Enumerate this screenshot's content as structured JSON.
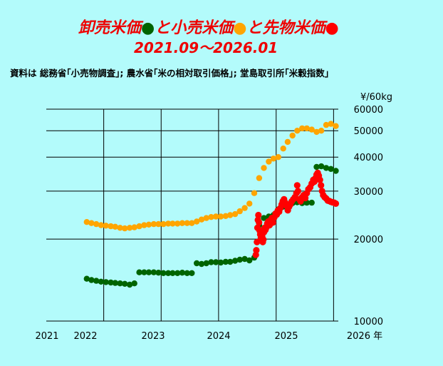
{
  "title": {
    "line1": {
      "part1": "卸売米価",
      "part2": "と小売米価",
      "part3": "と先物米価",
      "part4": ""
    },
    "line2": "2021.09～2026.01"
  },
  "source": "資料は 総務省｢小売物調査｣; 農水省｢米の相対取引価格｣; 堂島取引所｢米穀指数｣",
  "colors": {
    "title": "#ee0000",
    "wholesale": "#006400",
    "retail": "#ffa500",
    "futures": "#ff0000",
    "background": "#b3fbfb"
  },
  "chart_data": {
    "type": "scatter",
    "y_scale": "log",
    "ylim": [
      10000,
      60000
    ],
    "xlim": [
      "2021-01-01",
      "2026-01-31"
    ],
    "y_unit": "¥/60kg",
    "y_ticks": [
      "60000",
      "50000",
      "40000",
      "30000",
      "20000",
      "10000"
    ],
    "x_ticks": [
      "2021",
      "2022",
      "2023",
      "2024",
      "2025",
      "2026 年"
    ],
    "grid": true,
    "series": [
      {
        "name": "卸売米価",
        "color": "#006400",
        "points": [
          [
            "2021-09",
            14300
          ],
          [
            "2021-10",
            14150
          ],
          [
            "2021-11",
            14050
          ],
          [
            "2021-12",
            13950
          ],
          [
            "2022-01",
            13900
          ],
          [
            "2022-02",
            13850
          ],
          [
            "2022-03",
            13800
          ],
          [
            "2022-04",
            13750
          ],
          [
            "2022-05",
            13700
          ],
          [
            "2022-06",
            13600
          ],
          [
            "2022-07",
            13750
          ],
          [
            "2022-08",
            15100
          ],
          [
            "2022-09",
            15100
          ],
          [
            "2022-10",
            15100
          ],
          [
            "2022-11",
            15100
          ],
          [
            "2022-12",
            15050
          ],
          [
            "2023-01",
            15000
          ],
          [
            "2023-02",
            15000
          ],
          [
            "2023-03",
            15000
          ],
          [
            "2023-04",
            15000
          ],
          [
            "2023-05",
            15050
          ],
          [
            "2023-06",
            15000
          ],
          [
            "2023-07",
            15000
          ],
          [
            "2023-08",
            16300
          ],
          [
            "2023-09",
            16200
          ],
          [
            "2023-10",
            16300
          ],
          [
            "2023-11",
            16450
          ],
          [
            "2023-12",
            16450
          ],
          [
            "2024-01",
            16400
          ],
          [
            "2024-02",
            16500
          ],
          [
            "2024-03",
            16500
          ],
          [
            "2024-04",
            16650
          ],
          [
            "2024-05",
            16800
          ],
          [
            "2024-06",
            16900
          ],
          [
            "2024-07",
            16700
          ],
          [
            "2024-08",
            17100
          ],
          [
            "2024-09",
            22500
          ],
          [
            "2024-10",
            23900
          ],
          [
            "2024-11",
            24200
          ],
          [
            "2024-12",
            24500
          ],
          [
            "2025-01",
            25700
          ],
          [
            "2025-02",
            26300
          ],
          [
            "2025-03",
            26200
          ],
          [
            "2025-04",
            27100
          ],
          [
            "2025-05",
            27300
          ],
          [
            "2025-06",
            27100
          ],
          [
            "2025-07",
            27200
          ],
          [
            "2025-08",
            27200
          ],
          [
            "2025-09",
            36800
          ],
          [
            "2025-10",
            37000
          ],
          [
            "2025-11",
            36500
          ],
          [
            "2025-12",
            36200
          ],
          [
            "2026-01",
            35600
          ]
        ]
      },
      {
        "name": "小売米価",
        "color": "#ffa500",
        "points": [
          [
            "2021-09",
            23100
          ],
          [
            "2021-10",
            22900
          ],
          [
            "2021-11",
            22700
          ],
          [
            "2021-12",
            22500
          ],
          [
            "2022-01",
            22400
          ],
          [
            "2022-02",
            22300
          ],
          [
            "2022-03",
            22200
          ],
          [
            "2022-04",
            22000
          ],
          [
            "2022-05",
            21900
          ],
          [
            "2022-06",
            22000
          ],
          [
            "2022-07",
            22100
          ],
          [
            "2022-08",
            22300
          ],
          [
            "2022-09",
            22500
          ],
          [
            "2022-10",
            22600
          ],
          [
            "2022-11",
            22700
          ],
          [
            "2022-12",
            22700
          ],
          [
            "2023-01",
            22700
          ],
          [
            "2023-02",
            22800
          ],
          [
            "2023-03",
            22800
          ],
          [
            "2023-04",
            22800
          ],
          [
            "2023-05",
            22900
          ],
          [
            "2023-06",
            22900
          ],
          [
            "2023-07",
            22900
          ],
          [
            "2023-08",
            23200
          ],
          [
            "2023-09",
            23600
          ],
          [
            "2023-10",
            23900
          ],
          [
            "2023-11",
            24100
          ],
          [
            "2023-12",
            24200
          ],
          [
            "2024-01",
            24200
          ],
          [
            "2024-02",
            24300
          ],
          [
            "2024-03",
            24500
          ],
          [
            "2024-04",
            24700
          ],
          [
            "2024-05",
            25300
          ],
          [
            "2024-06",
            26000
          ],
          [
            "2024-07",
            27000
          ],
          [
            "2024-08",
            29500
          ],
          [
            "2024-09",
            33500
          ],
          [
            "2024-10",
            36500
          ],
          [
            "2024-11",
            38500
          ],
          [
            "2024-12",
            39500
          ],
          [
            "2025-01",
            40000
          ],
          [
            "2025-02",
            43000
          ],
          [
            "2025-03",
            45500
          ],
          [
            "2025-04",
            48000
          ],
          [
            "2025-05",
            50000
          ],
          [
            "2025-06",
            51000
          ],
          [
            "2025-07",
            51000
          ],
          [
            "2025-08",
            50500
          ],
          [
            "2025-09",
            49500
          ],
          [
            "2025-10",
            50000
          ],
          [
            "2025-11",
            52500
          ],
          [
            "2025-12",
            53000
          ],
          [
            "2026-01",
            52000
          ]
        ]
      },
      {
        "name": "先物米価",
        "color": "#ff0000",
        "points": [
          [
            "2024-08-25",
            17500
          ],
          [
            "2024-08-28",
            18200
          ],
          [
            "2024-09-01",
            19500
          ],
          [
            "2024-09-04",
            22000
          ],
          [
            "2024-09-07",
            23500
          ],
          [
            "2024-09-10",
            24500
          ],
          [
            "2024-09-14",
            23000
          ],
          [
            "2024-09-18",
            21500
          ],
          [
            "2024-09-22",
            20800
          ],
          [
            "2024-09-26",
            20200
          ],
          [
            "2024-09-30",
            21000
          ],
          [
            "2024-10-04",
            20500
          ],
          [
            "2024-10-08",
            19500
          ],
          [
            "2024-10-12",
            19900
          ],
          [
            "2024-10-16",
            21200
          ],
          [
            "2024-10-20",
            22000
          ],
          [
            "2024-10-25",
            21600
          ],
          [
            "2024-10-30",
            22000
          ],
          [
            "2024-11-05",
            22800
          ],
          [
            "2024-11-12",
            23200
          ],
          [
            "2024-11-20",
            22500
          ],
          [
            "2024-11-28",
            23500
          ],
          [
            "2024-12-05",
            23900
          ],
          [
            "2024-12-12",
            23000
          ],
          [
            "2024-12-20",
            24000
          ],
          [
            "2024-12-28",
            24800
          ],
          [
            "2025-01-05",
            24600
          ],
          [
            "2025-01-12",
            25500
          ],
          [
            "2025-01-20",
            25200
          ],
          [
            "2025-01-28",
            26000
          ],
          [
            "2025-02-05",
            26800
          ],
          [
            "2025-02-12",
            27500
          ],
          [
            "2025-02-20",
            28000
          ],
          [
            "2025-02-28",
            27200
          ],
          [
            "2025-03-08",
            26500
          ],
          [
            "2025-03-16",
            25500
          ],
          [
            "2025-03-24",
            26300
          ],
          [
            "2025-04-01",
            26800
          ],
          [
            "2025-04-10",
            27500
          ],
          [
            "2025-04-20",
            28000
          ],
          [
            "2025-04-30",
            28500
          ],
          [
            "2025-05-10",
            29500
          ],
          [
            "2025-05-15",
            31500
          ],
          [
            "2025-05-20",
            30000
          ],
          [
            "2025-05-28",
            28000
          ],
          [
            "2025-06-05",
            27500
          ],
          [
            "2025-06-15",
            28500
          ],
          [
            "2025-06-25",
            29000
          ],
          [
            "2025-07-05",
            28300
          ],
          [
            "2025-07-15",
            29500
          ],
          [
            "2025-07-25",
            30500
          ],
          [
            "2025-08-05",
            31000
          ],
          [
            "2025-08-15",
            32000
          ],
          [
            "2025-08-25",
            33000
          ],
          [
            "2025-09-01",
            32500
          ],
          [
            "2025-09-08",
            33500
          ],
          [
            "2025-09-15",
            34500
          ],
          [
            "2025-09-22",
            35000
          ],
          [
            "2025-09-29",
            34200
          ],
          [
            "2025-10-06",
            33000
          ],
          [
            "2025-10-13",
            31500
          ],
          [
            "2025-10-20",
            30000
          ],
          [
            "2025-10-27",
            29000
          ],
          [
            "2025-11-05",
            28500
          ],
          [
            "2025-11-15",
            28200
          ],
          [
            "2025-11-25",
            27700
          ],
          [
            "2025-12-05",
            27600
          ],
          [
            "2025-12-15",
            27400
          ],
          [
            "2025-12-25",
            27300
          ],
          [
            "2026-01-05",
            27200
          ],
          [
            "2026-01-15",
            27000
          ]
        ]
      }
    ]
  }
}
